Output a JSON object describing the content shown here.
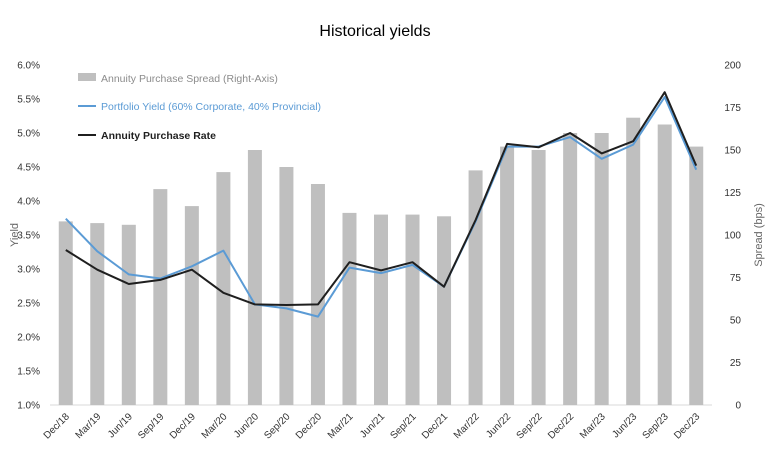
{
  "chart_data": {
    "type": "bar+line",
    "title": "Historical yields",
    "categories": [
      "Dec/18",
      "Mar/19",
      "Jun/19",
      "Sep/19",
      "Dec/19",
      "Mar/20",
      "Jun/20",
      "Sep/20",
      "Dec/20",
      "Mar/21",
      "Jun/21",
      "Sep/21",
      "Dec/21",
      "Mar/22",
      "Jun/22",
      "Sep/22",
      "Dec/22",
      "Mar/23",
      "Jun/23",
      "Sep/23",
      "Dec/23"
    ],
    "ylabel_left": "Yield",
    "ylabel_right": "Spread (bps)",
    "ylim_left": [
      1.0,
      6.0
    ],
    "ylim_right": [
      0,
      200
    ],
    "yticks_left": [
      "1.0%",
      "1.5%",
      "2.0%",
      "2.5%",
      "3.0%",
      "3.5%",
      "4.0%",
      "4.5%",
      "5.0%",
      "5.5%",
      "6.0%"
    ],
    "yticks_right": [
      "0",
      "25",
      "50",
      "75",
      "100",
      "125",
      "150",
      "175",
      "200"
    ],
    "legend_position": "top-left",
    "series": [
      {
        "name": "Annuity Purchase Spread (Right-Axis)",
        "kind": "bar",
        "axis": "right",
        "color": "#bfbfbf",
        "values": [
          108,
          107,
          106,
          127,
          117,
          137,
          150,
          140,
          130,
          113,
          112,
          112,
          111,
          138,
          152,
          150,
          160,
          160,
          169,
          165,
          152
        ]
      },
      {
        "name": "Portfolio Yield (60% Corporate, 40% Provincial)",
        "kind": "line",
        "axis": "left",
        "color": "#5b9bd5",
        "values": [
          3.74,
          3.26,
          2.92,
          2.86,
          3.04,
          3.27,
          2.48,
          2.42,
          2.3,
          3.02,
          2.94,
          3.06,
          2.74,
          3.7,
          4.8,
          4.8,
          4.94,
          4.62,
          4.83,
          5.53,
          4.46
        ]
      },
      {
        "name": "Annuity Purchase Rate",
        "kind": "line",
        "axis": "left",
        "color": "#1f1f1f",
        "values": [
          3.28,
          2.99,
          2.78,
          2.84,
          2.99,
          2.65,
          2.48,
          2.47,
          2.48,
          3.1,
          2.98,
          3.1,
          2.74,
          3.72,
          4.84,
          4.79,
          5.0,
          4.7,
          4.88,
          5.6,
          4.52
        ]
      }
    ]
  }
}
